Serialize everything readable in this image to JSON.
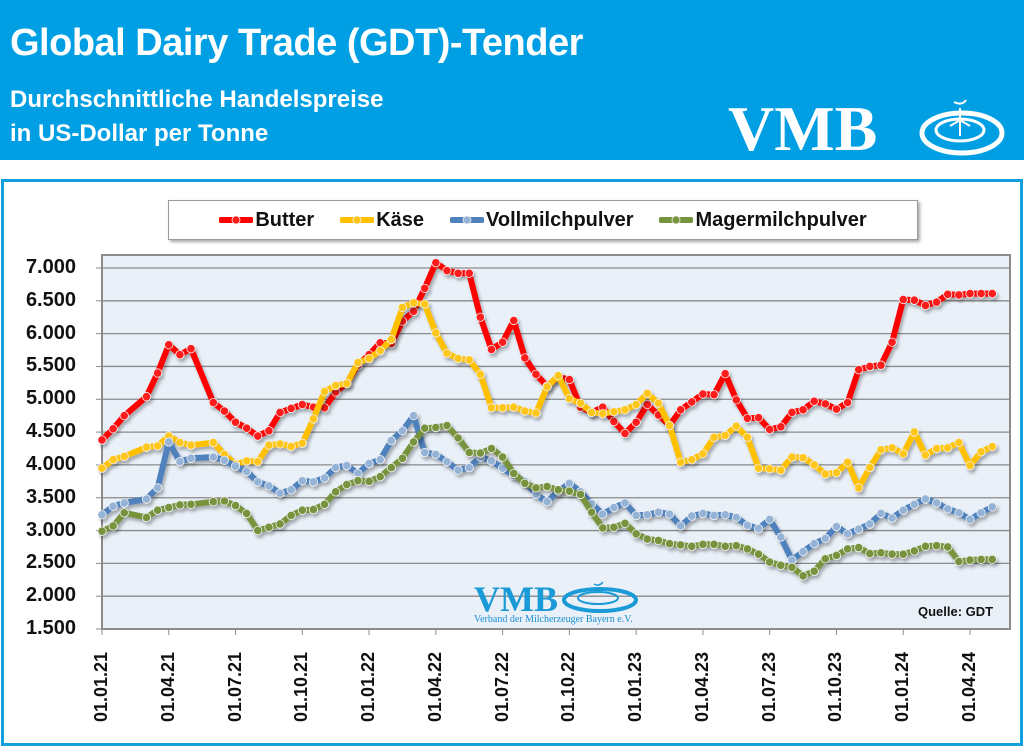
{
  "header": {
    "title": "Global Dairy Trade (GDT)-Tender",
    "subtitle_line1": "Durchschnittliche Handelspreise",
    "subtitle_line2": "in US-Dollar per Tonne",
    "logo_text": "VMB",
    "background_color": "#009fe3"
  },
  "watermark": {
    "logo_text": "VMB",
    "subtitle": "Verband der Milcherzeuger Bayern e.V."
  },
  "source_label": "Quelle:  GDT",
  "legend": [
    {
      "label": "Butter",
      "color": "#ff0000"
    },
    {
      "label": "Käse",
      "color": "#ffc000"
    },
    {
      "label": "Vollmilchpulver",
      "color": "#4f81bd"
    },
    {
      "label": "Magermilchpulver",
      "color": "#77933c"
    }
  ],
  "y_ticks": [
    "7.000",
    "6.500",
    "6.000",
    "5.500",
    "5.000",
    "4.500",
    "4.000",
    "3.500",
    "3.000",
    "2.500",
    "2.000",
    "1.500"
  ],
  "x_ticks": [
    "01.01.21",
    "01.04.21",
    "01.07.21",
    "01.10.21",
    "01.01.22",
    "01.04.22",
    "01.07.22",
    "01.10.22",
    "01.01.23",
    "01.04.23",
    "01.07.23",
    "01.10.23",
    "01.01.24",
    "01.04.24"
  ],
  "chart_data": {
    "type": "line",
    "title": "Global Dairy Trade (GDT)-Tender — Durchschnittliche Handelspreise in US-Dollar per Tonne",
    "xlabel": "",
    "ylabel": "US-Dollar per Tonne",
    "ylim": [
      1500,
      7000
    ],
    "grid": true,
    "legend_position": "top",
    "x_unit": "months since 01.01.21",
    "x": [
      0,
      0.5,
      1,
      2,
      2.5,
      3,
      3.5,
      4,
      5,
      5.5,
      6,
      6.5,
      7,
      7.5,
      8,
      8.5,
      9,
      9.5,
      10,
      10.5,
      11,
      11.5,
      12,
      12.5,
      13,
      13.5,
      14,
      14.5,
      15,
      15.5,
      16,
      16.5,
      17,
      17.5,
      18,
      18.5,
      19,
      19.5,
      20,
      20.5,
      21,
      21.5,
      22,
      22.5,
      23,
      23.5,
      24,
      24.5,
      25,
      25.5,
      26,
      26.5,
      27,
      27.5,
      28,
      28.5,
      29,
      29.5,
      30,
      30.5,
      31,
      31.5,
      32,
      32.5,
      33,
      33.5,
      34,
      34.5,
      35,
      35.5,
      36,
      36.5,
      37,
      37.5,
      38,
      38.5,
      39,
      39.5,
      40
    ],
    "series": [
      {
        "name": "Butter",
        "color": "#ff0000",
        "values": [
          4380,
          4550,
          4750,
          5040,
          5400,
          5830,
          5680,
          5770,
          4950,
          4820,
          4650,
          4560,
          4440,
          4520,
          4800,
          4860,
          4920,
          4880,
          4870,
          5110,
          5250,
          5520,
          5680,
          5860,
          5850,
          6190,
          6340,
          6690,
          7080,
          6960,
          6920,
          6920,
          6250,
          5760,
          5870,
          6200,
          5630,
          5380,
          5200,
          5340,
          5300,
          4880,
          4800,
          4880,
          4660,
          4480,
          4650,
          4920,
          4760,
          4600,
          4840,
          4960,
          5080,
          5070,
          5390,
          4990,
          4710,
          4720,
          4540,
          4580,
          4800,
          4840,
          4970,
          4930,
          4850,
          4950,
          5450,
          5500,
          5520,
          5870,
          6520,
          6510,
          6430,
          6480,
          6600,
          6590,
          6610,
          6610,
          6610
        ]
      },
      {
        "name": "Käse",
        "color": "#ffc000",
        "values": [
          3950,
          4080,
          4130,
          4270,
          4290,
          4440,
          4340,
          4300,
          4340,
          4160,
          4010,
          4060,
          4050,
          4300,
          4320,
          4280,
          4330,
          4700,
          5120,
          5210,
          5240,
          5560,
          5620,
          5740,
          5910,
          6400,
          6470,
          6450,
          6010,
          5700,
          5620,
          5600,
          5380,
          4870,
          4870,
          4880,
          4820,
          4790,
          5190,
          5360,
          5010,
          4940,
          4800,
          4780,
          4810,
          4840,
          4920,
          5090,
          4940,
          4600,
          4040,
          4080,
          4170,
          4420,
          4450,
          4590,
          4420,
          3950,
          3940,
          3920,
          4120,
          4110,
          4000,
          3860,
          3880,
          4040,
          3650,
          3960,
          4230,
          4260,
          4170,
          4500,
          4150,
          4250,
          4260,
          4340,
          3990,
          4200,
          4280
        ]
      },
      {
        "name": "Vollmilchpulver",
        "color": "#4f81bd",
        "values": [
          3240,
          3370,
          3420,
          3480,
          3650,
          4350,
          4050,
          4100,
          4120,
          4070,
          3980,
          3900,
          3740,
          3680,
          3570,
          3620,
          3760,
          3740,
          3800,
          3960,
          3990,
          3870,
          4020,
          4080,
          4370,
          4520,
          4750,
          4190,
          4160,
          4050,
          3920,
          3960,
          4120,
          4060,
          3950,
          3840,
          3750,
          3550,
          3440,
          3600,
          3720,
          3590,
          3410,
          3250,
          3350,
          3420,
          3230,
          3240,
          3280,
          3250,
          3070,
          3220,
          3260,
          3230,
          3240,
          3200,
          3080,
          3030,
          3170,
          2900,
          2550,
          2680,
          2800,
          2880,
          3060,
          2950,
          3020,
          3100,
          3260,
          3190,
          3310,
          3400,
          3480,
          3420,
          3330,
          3270,
          3170,
          3270,
          3360
        ]
      },
      {
        "name": "Magermilchpulver",
        "color": "#77933c",
        "values": [
          2990,
          3070,
          3270,
          3200,
          3310,
          3350,
          3390,
          3400,
          3440,
          3450,
          3380,
          3260,
          3000,
          3050,
          3100,
          3230,
          3310,
          3320,
          3400,
          3590,
          3700,
          3760,
          3750,
          3820,
          3960,
          4100,
          4350,
          4560,
          4570,
          4600,
          4410,
          4190,
          4180,
          4250,
          4120,
          3870,
          3720,
          3650,
          3670,
          3620,
          3600,
          3550,
          3280,
          3040,
          3050,
          3110,
          2950,
          2870,
          2850,
          2800,
          2780,
          2760,
          2790,
          2790,
          2760,
          2770,
          2720,
          2640,
          2520,
          2470,
          2440,
          2310,
          2380,
          2570,
          2620,
          2720,
          2740,
          2650,
          2660,
          2640,
          2640,
          2690,
          2760,
          2770,
          2750,
          2530,
          2550,
          2560,
          2560
        ]
      }
    ]
  }
}
